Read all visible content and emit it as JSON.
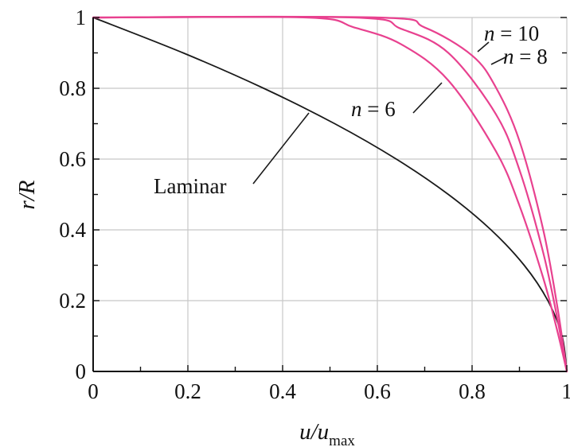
{
  "chart_data": {
    "type": "line",
    "title": "",
    "xlabel": {
      "main": "u/u",
      "sub": "max"
    },
    "ylabel": "r/R",
    "xlim": [
      0,
      1
    ],
    "ylim": [
      0,
      1
    ],
    "xticks": [
      "0",
      "0.2",
      "0.4",
      "0.6",
      "0.8",
      "1"
    ],
    "yticks": [
      "0",
      "0.2",
      "0.4",
      "0.6",
      "0.8",
      "1"
    ],
    "grid": true,
    "colors": {
      "laminar": "#1a1a1a",
      "turbulent": "#e8418f",
      "grid": "#c8c8c8",
      "axis": "#111111"
    },
    "series": [
      {
        "name": "Laminar",
        "x": [
          1.0,
          0.99,
          0.96,
          0.91,
          0.84,
          0.75,
          0.64,
          0.51,
          0.36,
          0.19,
          0.0
        ],
        "y": [
          0.0,
          0.1,
          0.2,
          0.3,
          0.4,
          0.5,
          0.6,
          0.7,
          0.8,
          0.9,
          1.0
        ]
      },
      {
        "name": "n = 6",
        "x": [
          0.0,
          0.45,
          0.55,
          0.65,
          0.75,
          0.85,
          0.9,
          0.95,
          0.98,
          1.0
        ],
        "y": [
          1.0,
          1.0,
          0.9722,
          0.9246,
          0.822,
          0.6228,
          0.4686,
          0.2649,
          0.1142,
          0.0
        ]
      },
      {
        "name": "n = 8",
        "x": [
          0.0,
          0.55,
          0.65,
          0.75,
          0.85,
          0.9,
          0.95,
          0.98,
          1.0
        ],
        "y": [
          1.0,
          1.0,
          0.9681,
          0.8999,
          0.7275,
          0.5695,
          0.3366,
          0.1492,
          0.0
        ]
      },
      {
        "name": "n = 10",
        "x": [
          0.0,
          0.6,
          0.7,
          0.8,
          0.85,
          0.9,
          0.95,
          0.98,
          1.0
        ],
        "y": [
          1.0,
          1.0,
          0.9718,
          0.8926,
          0.8031,
          0.6513,
          0.4013,
          0.1829,
          0.0
        ]
      }
    ],
    "annotations": [
      {
        "label": "Laminar",
        "target_series": "Laminar"
      },
      {
        "label_italic": "n",
        "label_rest": " = 6",
        "target_series": "n = 6"
      },
      {
        "label_italic": "n",
        "label_rest": " = 8",
        "target_series": "n = 8"
      },
      {
        "label_italic": "n",
        "label_rest": " = 10",
        "target_series": "n = 10"
      }
    ]
  }
}
